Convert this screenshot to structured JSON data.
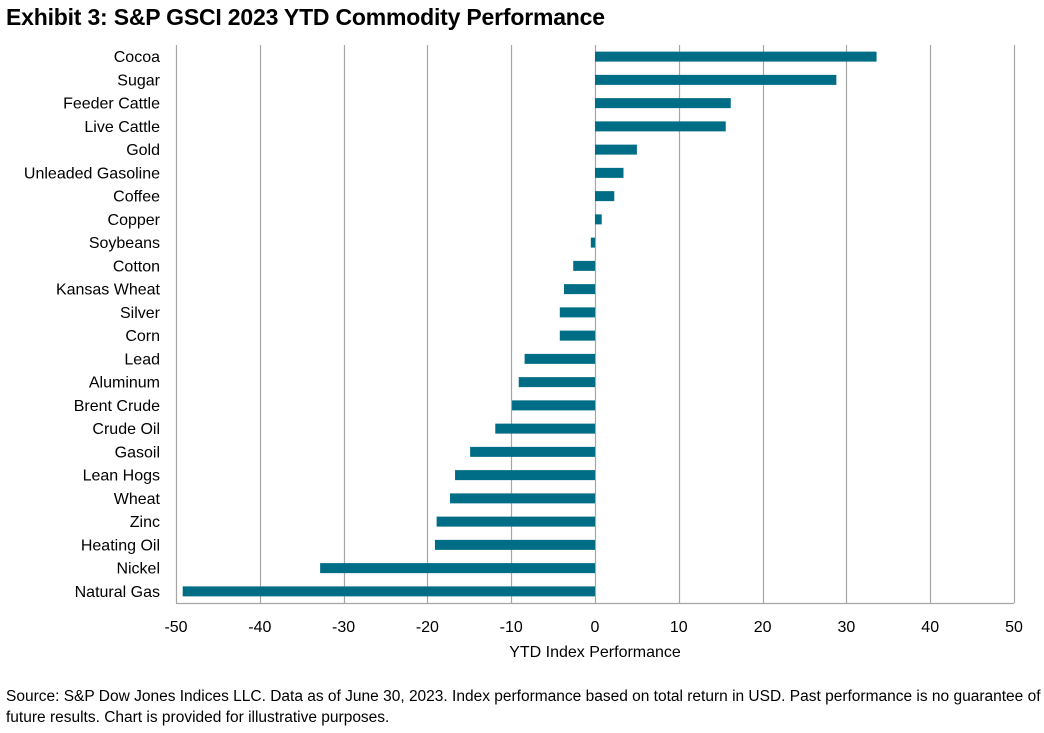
{
  "chart_data": {
    "type": "bar",
    "orientation": "horizontal",
    "title": "Exhibit 3: S&P GSCI 2023 YTD Commodity Performance",
    "xlabel": "YTD Index Performance",
    "ylabel": "",
    "xlim": [
      -50,
      50
    ],
    "xticks": [
      -50,
      -40,
      -30,
      -20,
      -10,
      0,
      10,
      20,
      30,
      40,
      50
    ],
    "xtick_labels": [
      "-50",
      "-40",
      "-30",
      "-20",
      "-10",
      "0",
      "10",
      "20",
      "30",
      "40",
      "50"
    ],
    "grid": "vertical",
    "legend": "none",
    "bar_color": "#006D86",
    "categories": [
      "Cocoa",
      "Sugar",
      "Feeder Cattle",
      "Live Cattle",
      "Gold",
      "Unleaded Gasoline",
      "Coffee",
      "Copper",
      "Soybeans",
      "Cotton",
      "Kansas Wheat",
      "Silver",
      "Corn",
      "Lead",
      "Aluminum",
      "Brent Crude",
      "Crude Oil",
      "Gasoil",
      "Lean Hogs",
      "Wheat",
      "Zinc",
      "Heating Oil",
      "Nickel",
      "Natural Gas"
    ],
    "values": [
      33.6,
      28.8,
      16.2,
      15.6,
      5.0,
      3.4,
      2.3,
      0.8,
      -0.5,
      -2.6,
      -3.7,
      -4.2,
      -4.2,
      -8.4,
      -9.1,
      -9.9,
      -11.9,
      -14.9,
      -16.7,
      -17.3,
      -18.9,
      -19.1,
      -32.8,
      -49.2
    ]
  },
  "footnote": "Source: S&P Dow Jones Indices LLC. Data as of June 30, 2023. Index performance based on total return in USD. Past performance is no guarantee of future results. Chart is provided for illustrative purposes."
}
